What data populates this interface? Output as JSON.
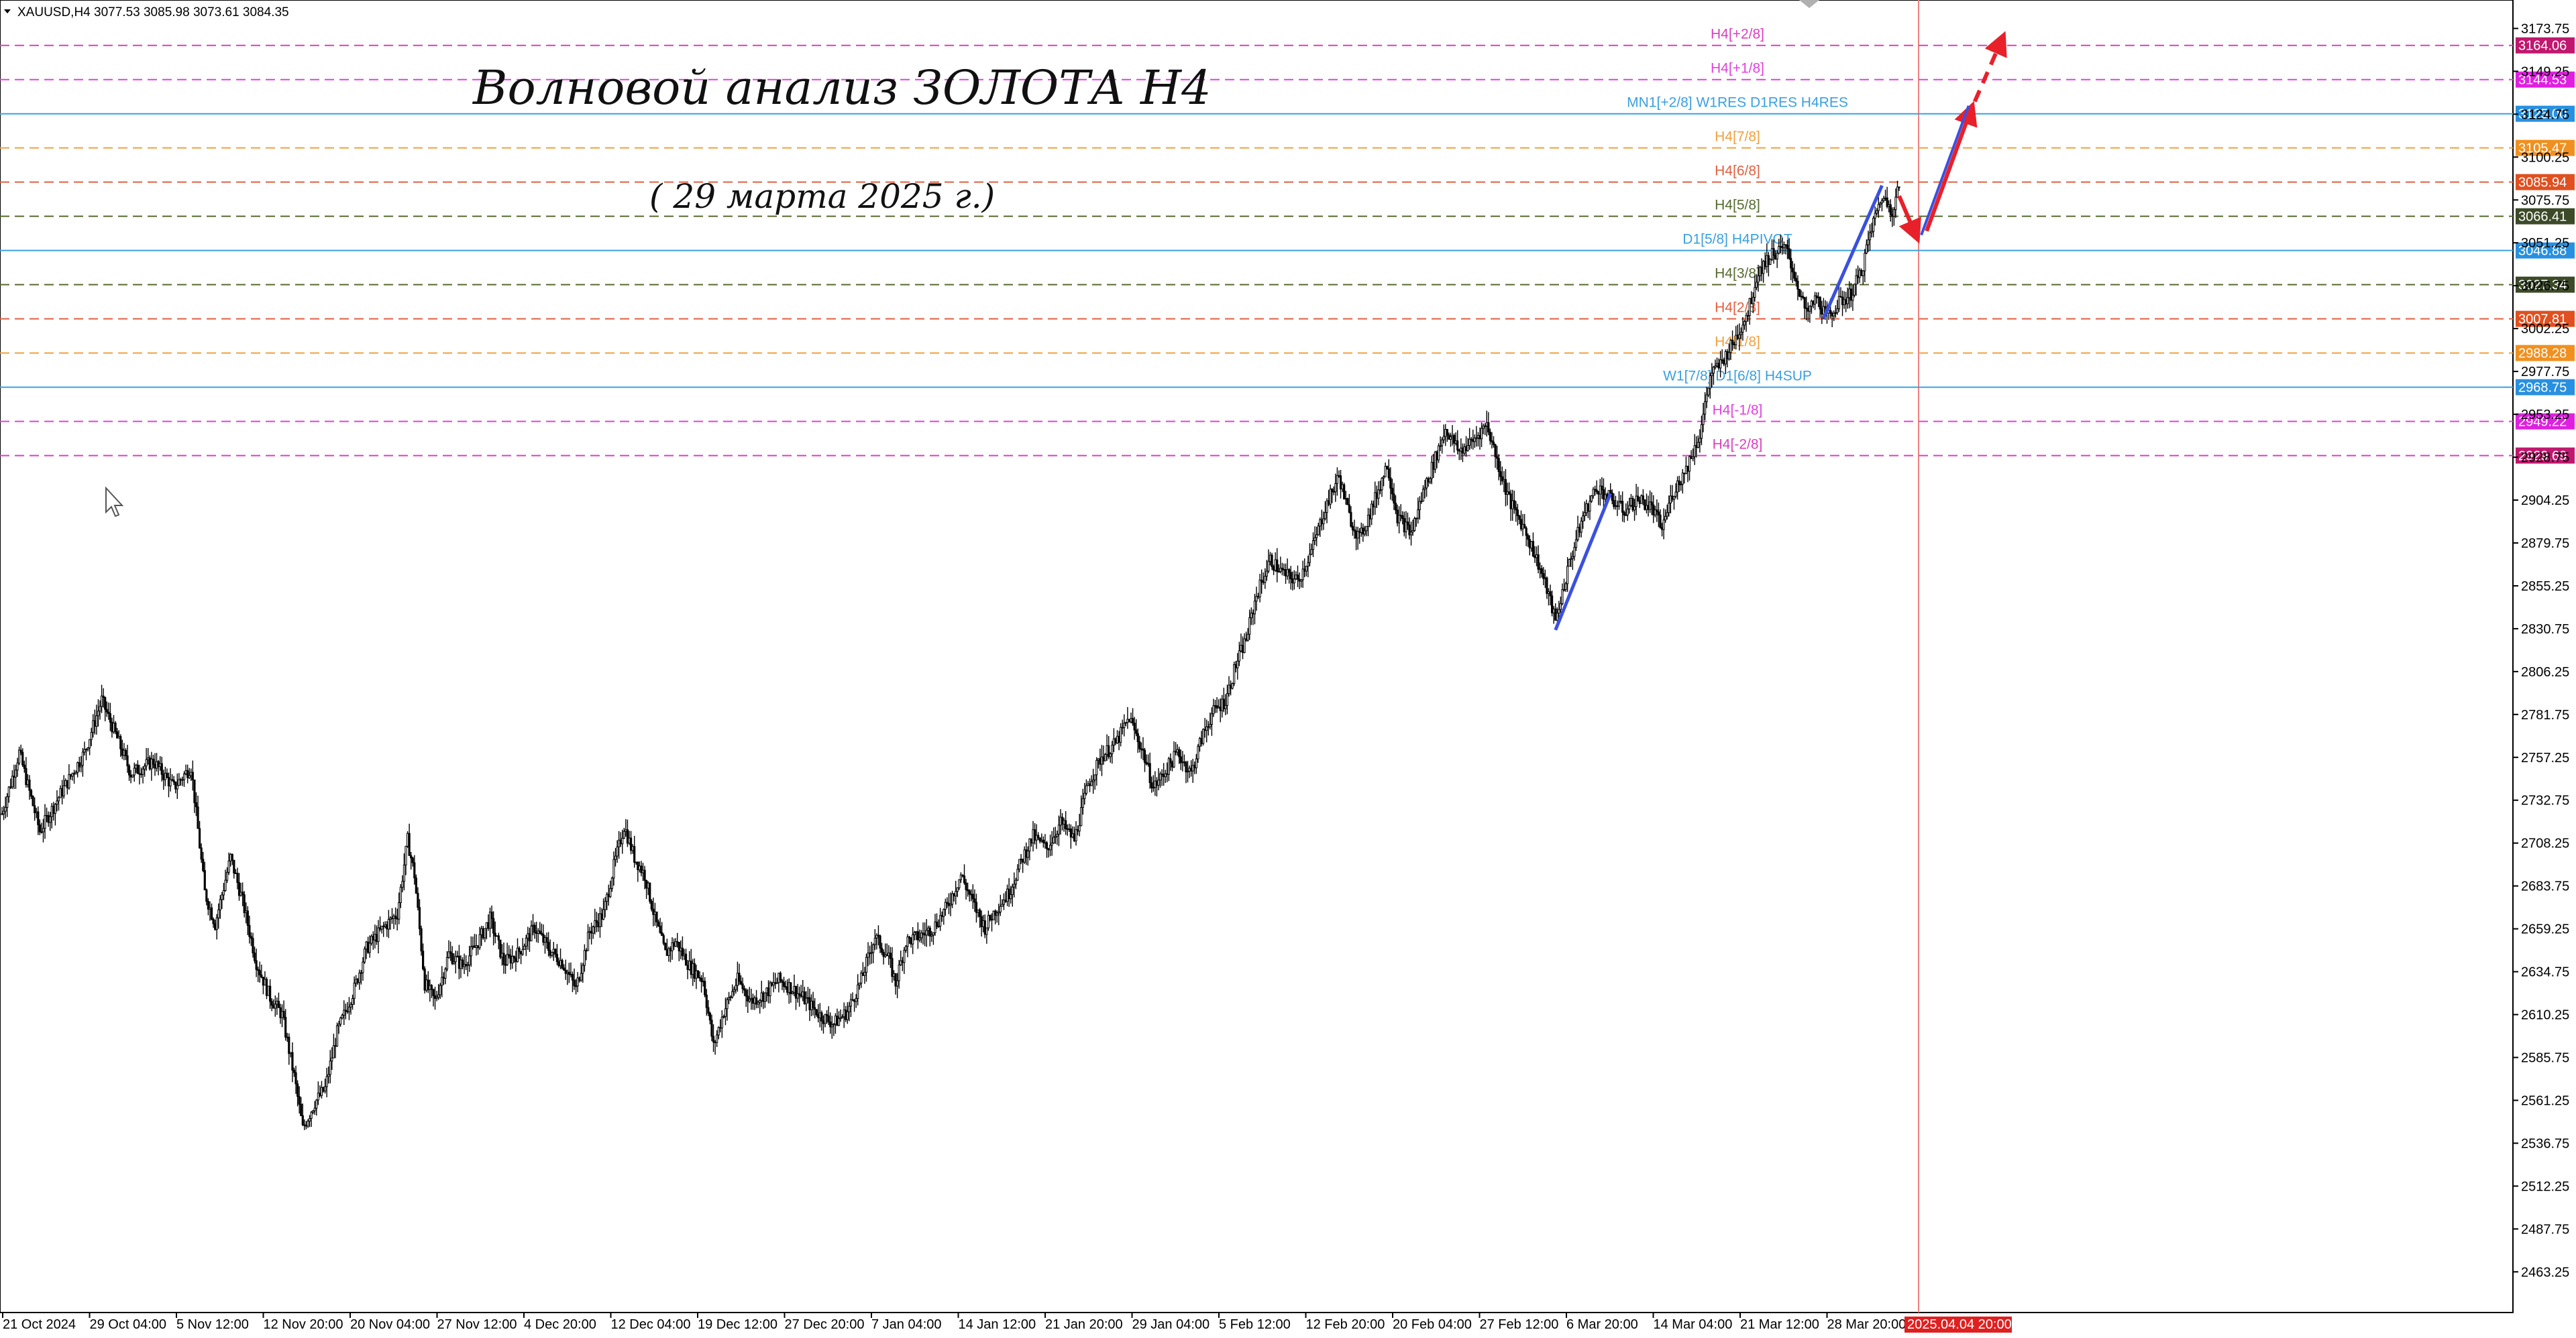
{
  "header": {
    "symbol_line": "XAUUSD,H4   3077.53 3085.98 3073.61 3084.35"
  },
  "annotation": {
    "title": "Волновой анализ ЗОЛОТА H4",
    "subtitle": "( 29 марта 2025 г.)"
  },
  "colors": {
    "background": "#ffffff",
    "candle": "#000000",
    "grid_axis": "#000000",
    "wave_line": "#3a50e0",
    "forecast_arrow": "#e8202a",
    "current_time_line": "#f08080"
  },
  "chart_data": {
    "type": "candlestick",
    "symbol": "XAUUSD",
    "timeframe": "H4",
    "ohlc_current": {
      "open": 3077.53,
      "high": 3085.98,
      "low": 3073.61,
      "close": 3084.35
    },
    "ylim": [
      2440,
      3190
    ],
    "y_ticks": [
      "3173.75",
      "3149.25",
      "3124.75",
      "3100.25",
      "3075.75",
      "3051.25",
      "3026.75",
      "3002.25",
      "2977.75",
      "2953.25",
      "2928.75",
      "2904.25",
      "2879.75",
      "2855.25",
      "2830.75",
      "2806.25",
      "2781.75",
      "2757.25",
      "2732.75",
      "2708.25",
      "2683.75",
      "2659.25",
      "2634.75",
      "2610.25",
      "2585.75",
      "2561.25",
      "2536.75",
      "2512.25",
      "2487.75",
      "2463.25"
    ],
    "x_ticks": [
      "21 Oct 2024",
      "29 Oct 04:00",
      "5 Nov 12:00",
      "12 Nov 20:00",
      "20 Nov 04:00",
      "27 Nov 12:00",
      "4 Dec 20:00",
      "12 Dec 04:00",
      "19 Dec 12:00",
      "27 Dec 20:00",
      "7 Jan 04:00",
      "14 Jan 12:00",
      "21 Jan 20:00",
      "29 Jan 04:00",
      "5 Feb 12:00",
      "12 Feb 20:00",
      "20 Feb 04:00",
      "27 Feb 12:00",
      "6 Mar 20:00",
      "14 Mar 04:00",
      "21 Mar 12:00",
      "28 Mar 20:00"
    ],
    "x_tick_highlight": "2025.04.04 20:00",
    "price_path": [
      [
        0,
        2725
      ],
      [
        10,
        2760
      ],
      [
        22,
        2715
      ],
      [
        35,
        2738
      ],
      [
        48,
        2760
      ],
      [
        58,
        2790
      ],
      [
        67,
        2768
      ],
      [
        75,
        2748
      ],
      [
        88,
        2755
      ],
      [
        100,
        2740
      ],
      [
        110,
        2752
      ],
      [
        118,
        2680
      ],
      [
        124,
        2662
      ],
      [
        133,
        2700
      ],
      [
        140,
        2675
      ],
      [
        148,
        2640
      ],
      [
        156,
        2620
      ],
      [
        163,
        2610
      ],
      [
        170,
        2575
      ],
      [
        175,
        2545
      ],
      [
        182,
        2560
      ],
      [
        188,
        2568
      ],
      [
        195,
        2600
      ],
      [
        205,
        2625
      ],
      [
        212,
        2648
      ],
      [
        222,
        2660
      ],
      [
        230,
        2668
      ],
      [
        236,
        2710
      ],
      [
        240,
        2690
      ],
      [
        246,
        2628
      ],
      [
        252,
        2618
      ],
      [
        260,
        2645
      ],
      [
        268,
        2638
      ],
      [
        276,
        2650
      ],
      [
        284,
        2665
      ],
      [
        292,
        2640
      ],
      [
        300,
        2645
      ],
      [
        310,
        2660
      ],
      [
        318,
        2648
      ],
      [
        326,
        2640
      ],
      [
        334,
        2625
      ],
      [
        342,
        2658
      ],
      [
        350,
        2668
      ],
      [
        356,
        2695
      ],
      [
        362,
        2718
      ],
      [
        368,
        2700
      ],
      [
        374,
        2690
      ],
      [
        380,
        2665
      ],
      [
        386,
        2645
      ],
      [
        392,
        2652
      ],
      [
        400,
        2638
      ],
      [
        408,
        2630
      ],
      [
        414,
        2592
      ],
      [
        420,
        2612
      ],
      [
        428,
        2630
      ],
      [
        436,
        2618
      ],
      [
        444,
        2622
      ],
      [
        452,
        2630
      ],
      [
        460,
        2625
      ],
      [
        468,
        2618
      ],
      [
        476,
        2610
      ],
      [
        484,
        2605
      ],
      [
        492,
        2612
      ],
      [
        500,
        2630
      ],
      [
        508,
        2655
      ],
      [
        516,
        2642
      ],
      [
        520,
        2628
      ],
      [
        526,
        2652
      ],
      [
        534,
        2655
      ],
      [
        542,
        2660
      ],
      [
        550,
        2672
      ],
      [
        558,
        2690
      ],
      [
        566,
        2672
      ],
      [
        572,
        2660
      ],
      [
        578,
        2670
      ],
      [
        586,
        2680
      ],
      [
        594,
        2700
      ],
      [
        600,
        2712
      ],
      [
        608,
        2705
      ],
      [
        616,
        2720
      ],
      [
        624,
        2710
      ],
      [
        632,
        2742
      ],
      [
        640,
        2758
      ],
      [
        648,
        2765
      ],
      [
        656,
        2780
      ],
      [
        664,
        2760
      ],
      [
        670,
        2740
      ],
      [
        676,
        2748
      ],
      [
        684,
        2760
      ],
      [
        692,
        2748
      ],
      [
        698,
        2768
      ],
      [
        704,
        2782
      ],
      [
        712,
        2790
      ],
      [
        718,
        2810
      ],
      [
        724,
        2825
      ],
      [
        730,
        2850
      ],
      [
        738,
        2870
      ],
      [
        746,
        2862
      ],
      [
        754,
        2858
      ],
      [
        762,
        2875
      ],
      [
        770,
        2900
      ],
      [
        778,
        2918
      ],
      [
        784,
        2895
      ],
      [
        790,
        2882
      ],
      [
        798,
        2902
      ],
      [
        806,
        2925
      ],
      [
        812,
        2895
      ],
      [
        820,
        2885
      ],
      [
        828,
        2912
      ],
      [
        834,
        2928
      ],
      [
        840,
        2945
      ],
      [
        848,
        2932
      ],
      [
        856,
        2938
      ],
      [
        864,
        2948
      ],
      [
        872,
        2920
      ],
      [
        878,
        2902
      ],
      [
        886,
        2888
      ],
      [
        894,
        2868
      ],
      [
        900,
        2850
      ],
      [
        904,
        2835
      ],
      [
        912,
        2868
      ],
      [
        920,
        2895
      ],
      [
        928,
        2912
      ],
      [
        936,
        2905
      ],
      [
        944,
        2898
      ],
      [
        952,
        2905
      ],
      [
        960,
        2900
      ],
      [
        966,
        2888
      ],
      [
        972,
        2908
      ],
      [
        980,
        2922
      ],
      [
        988,
        2942
      ],
      [
        994,
        2975
      ],
      [
        1000,
        2982
      ],
      [
        1008,
        2995
      ],
      [
        1016,
        3012
      ],
      [
        1022,
        3035
      ],
      [
        1030,
        3045
      ],
      [
        1038,
        3048
      ],
      [
        1044,
        3030
      ],
      [
        1050,
        3010
      ],
      [
        1056,
        3020
      ],
      [
        1062,
        3008
      ],
      [
        1068,
        3016
      ],
      [
        1076,
        3022
      ],
      [
        1082,
        3035
      ],
      [
        1088,
        3060
      ],
      [
        1094,
        3078
      ],
      [
        1100,
        3070
      ],
      [
        1104,
        3084
      ]
    ],
    "levels": [
      {
        "label": "H4[+2/8]",
        "price": 3164.06,
        "color": "#d93fbf",
        "tag": "3164.06",
        "tag_color": "#c0186e",
        "dashed": true
      },
      {
        "label": "H4[+1/8]",
        "price": 3144.53,
        "color": "#e040e0",
        "tag": "3144.53",
        "tag_color": "#e020e0",
        "dashed": true
      },
      {
        "label": "MN1[+2/8] W1RES D1RES H4RES",
        "price": 3125.0,
        "color": "#3aa0e0",
        "tag": "3125.00",
        "tag_color": "#2890e0",
        "dashed": false
      },
      {
        "label": "H4[7/8]",
        "price": 3105.47,
        "color": "#f0a040",
        "tag": "3105.47",
        "tag_color": "#f09020",
        "dashed": true
      },
      {
        "label": "H4[6/8]",
        "price": 3085.94,
        "color": "#e06040",
        "tag": "3085.94",
        "tag_color": "#e05020",
        "dashed": true
      },
      {
        "label": "H4[5/8]",
        "price": 3066.41,
        "color": "#556b2f",
        "tag": "3066.41",
        "tag_color": "#3c4a28",
        "dashed": true
      },
      {
        "label": "D1[5/8] H4PIVOT",
        "price": 3046.88,
        "color": "#3aa0e0",
        "tag": "3046.88",
        "tag_color": "#2890e0",
        "dashed": false
      },
      {
        "label": "H4[3/8]",
        "price": 3027.34,
        "color": "#556b2f",
        "tag": "3027.34",
        "tag_color": "#3c4a28",
        "dashed": true
      },
      {
        "label": "H4[2/8]",
        "price": 3007.81,
        "color": "#e06040",
        "tag": "3007.81",
        "tag_color": "#e05020",
        "dashed": true
      },
      {
        "label": "H4[1/8]",
        "price": 2988.28,
        "color": "#f0a040",
        "tag": "2988.28",
        "tag_color": "#f09020",
        "dashed": true
      },
      {
        "label": "W1[7/8] D1[6/8] H4SUP",
        "price": 2968.75,
        "color": "#3aa0e0",
        "tag": "2968.75",
        "tag_color": "#2890e0",
        "dashed": false
      },
      {
        "label": "H4[-1/8]",
        "price": 2949.22,
        "color": "#e040e0",
        "tag": "2949.22",
        "tag_color": "#e020e0",
        "dashed": true
      },
      {
        "label": "H4[-2/8]",
        "price": 2929.69,
        "color": "#d93fbf",
        "tag": "2929.69",
        "tag_color": "#c0186e",
        "dashed": true
      }
    ],
    "wave_lines": [
      {
        "from": [
          904,
          2830
        ],
        "to": [
          936,
          2908
        ]
      },
      {
        "from": [
          1060,
          3008
        ],
        "to": [
          1094,
          3084
        ]
      }
    ],
    "forecast_arrows": [
      {
        "from": [
          1104,
          3078
        ],
        "to": [
          1114,
          3055
        ],
        "dashed": false
      },
      {
        "from": [
          1120,
          3058
        ],
        "to": [
          1146,
          3128
        ],
        "dashed": false
      },
      {
        "from": [
          1148,
          3132
        ],
        "to": [
          1164,
          3168
        ],
        "dashed": true
      }
    ],
    "right_edge_index": 1168
  }
}
